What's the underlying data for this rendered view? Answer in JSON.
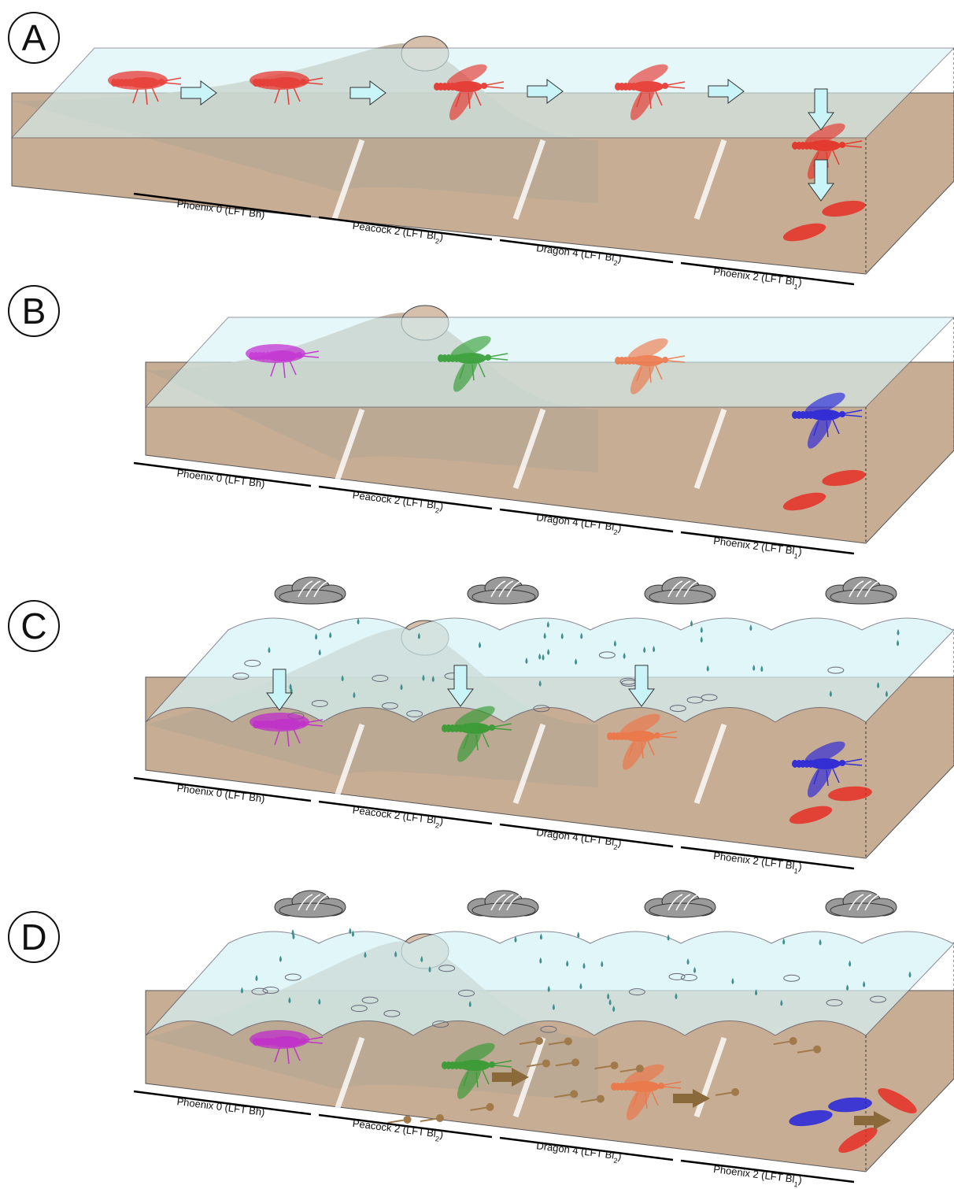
{
  "panels": [
    {
      "label": "A",
      "sites": [
        {
          "text": "Phoenix 0 (LFT Bh)"
        },
        {
          "text": "Peacock 2 (LFT Bl",
          "sub": "2",
          "close": ")"
        },
        {
          "text": "Dragon 4 (LFT Bl",
          "sub": "2",
          "close": ")"
        },
        {
          "text": "Phoenix 2 (LFT Bl",
          "sub": "1",
          "close": ")"
        }
      ]
    },
    {
      "label": "B",
      "sites": [
        {
          "text": "Phoenix 0 (LFT Bh)"
        },
        {
          "text": "Peacock 2 (LFT Bl",
          "sub": "2",
          "close": ")"
        },
        {
          "text": "Dragon 4 (LFT Bl",
          "sub": "2",
          "close": ")"
        },
        {
          "text": "Phoenix 2 (LFT Bl",
          "sub": "1",
          "close": ")"
        }
      ]
    },
    {
      "label": "C",
      "sites": [
        {
          "text": "Phoenix 0 (LFT Bh)"
        },
        {
          "text": "Peacock 2 (LFT Bl",
          "sub": "2",
          "close": ")"
        },
        {
          "text": "Dragon 4 (LFT Bl",
          "sub": "2",
          "close": ")"
        },
        {
          "text": "Phoenix 2 (LFT Bl",
          "sub": "1",
          "close": ")"
        }
      ]
    },
    {
      "label": "D",
      "sites": [
        {
          "text": "Phoenix 0 (LFT Bh)"
        },
        {
          "text": "Peacock 2 (LFT Bl",
          "sub": "2",
          "close": ")"
        },
        {
          "text": "Dragon 4 (LFT Bl",
          "sub": "2",
          "close": ")"
        },
        {
          "text": "Phoenix 2 (LFT Bl",
          "sub": "1",
          "close": ")"
        }
      ]
    }
  ]
}
